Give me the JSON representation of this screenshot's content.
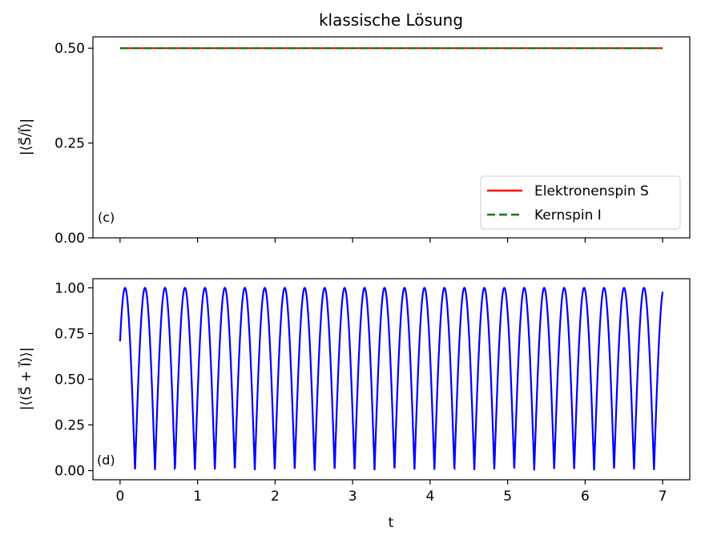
{
  "title": "klassische Lösung",
  "chart_data": [
    {
      "type": "line",
      "panel_tag": "(c)",
      "ylabel": "|⟨S⃗/I⃗⟩|",
      "xlim": [
        -0.35,
        7.35
      ],
      "ylim": [
        0.0,
        0.53
      ],
      "yticks": [
        0.0,
        0.25,
        0.5
      ],
      "ytick_labels": [
        "0.00",
        "0.25",
        "0.50"
      ],
      "xticks": [
        0,
        1,
        2,
        3,
        4,
        5,
        6,
        7
      ],
      "show_xtick_labels": false,
      "legend": "lower right",
      "series": [
        {
          "name": "Elektronenspin S",
          "color": "#ff0000",
          "style": "solid",
          "x": [
            0,
            7
          ],
          "y": [
            0.5,
            0.5
          ]
        },
        {
          "name": "Kernspin I",
          "color": "#008000",
          "style": "dashed",
          "x": [
            0,
            7
          ],
          "y": [
            0.5,
            0.5
          ]
        }
      ]
    },
    {
      "type": "line",
      "panel_tag": "(d)",
      "ylabel": "|⟨(S⃗ + I⃗)⟩|",
      "xlabel": "t",
      "xlim": [
        -0.35,
        7.35
      ],
      "ylim": [
        -0.05,
        1.05
      ],
      "yticks": [
        0.0,
        0.25,
        0.5,
        0.75,
        1.0
      ],
      "ytick_labels": [
        "0.00",
        "0.25",
        "0.50",
        "0.75",
        "1.00"
      ],
      "xticks": [
        0,
        1,
        2,
        3,
        4,
        5,
        6,
        7
      ],
      "xtick_labels": [
        "0",
        "1",
        "2",
        "3",
        "4",
        "5",
        "6",
        "7"
      ],
      "series": [
        {
          "name": "",
          "color": "#0000ff",
          "style": "solid",
          "function": "abs(cos(omega*t + phase))",
          "omega": 12.2,
          "phase": -0.785,
          "t_range": [
            0,
            7
          ]
        }
      ]
    }
  ]
}
